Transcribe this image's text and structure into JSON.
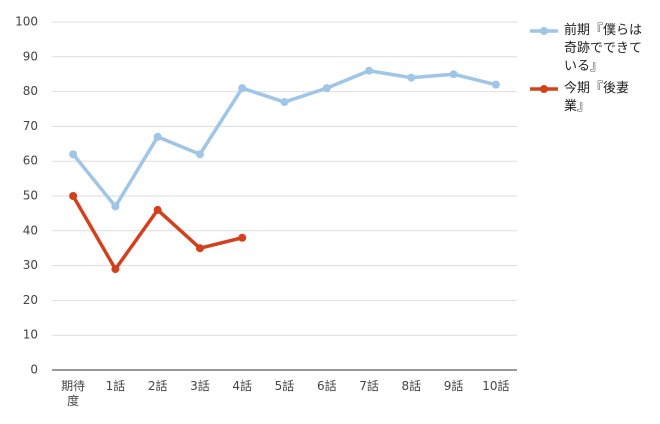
{
  "chart_data": {
    "type": "line",
    "categories": [
      "期待度",
      "1話",
      "2話",
      "3話",
      "4話",
      "5話",
      "6話",
      "7話",
      "8話",
      "9話",
      "10話"
    ],
    "series": [
      {
        "name": "前期『僕らは奇跡でできている』",
        "color": "#9fc5e8",
        "values": [
          62,
          47,
          67,
          62,
          81,
          77,
          81,
          86,
          84,
          85,
          82
        ]
      },
      {
        "name": "今期『後妻業』",
        "color": "#d4401c",
        "values": [
          50,
          29,
          46,
          35,
          38,
          null,
          null,
          null,
          null,
          null,
          null
        ]
      }
    ],
    "ylim": [
      0,
      100
    ],
    "yticks": [
      0,
      10,
      20,
      30,
      40,
      50,
      60,
      70,
      80,
      90,
      100
    ],
    "grid": true,
    "legend": "right"
  }
}
